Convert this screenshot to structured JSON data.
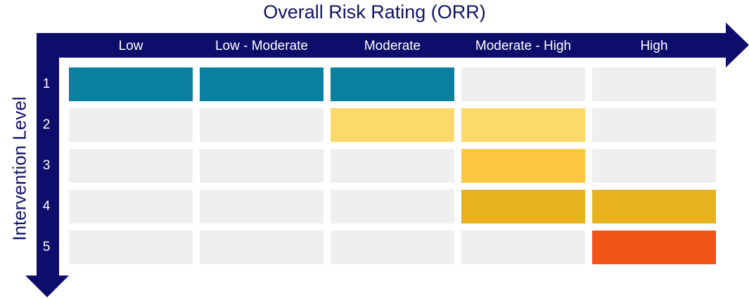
{
  "title": "Overall Risk Rating (ORR)",
  "y_title": "Intervention Level",
  "columns": [
    "Low",
    "Low - Moderate",
    "Moderate",
    "Moderate - High",
    "High"
  ],
  "rows": [
    "1",
    "2",
    "3",
    "4",
    "5"
  ],
  "colors": {
    "axis": "#0d0d6b",
    "empty": "#efefef",
    "teal": "#0a7f9f",
    "light_yellow": "#fdd96c",
    "yellow": "#fcc73f",
    "gold": "#e7b21e",
    "orange": "#f25317"
  },
  "grid": [
    [
      "teal",
      "teal",
      "teal",
      "empty",
      "empty"
    ],
    [
      "empty",
      "empty",
      "light_yellow",
      "light_yellow",
      "empty"
    ],
    [
      "empty",
      "empty",
      "empty",
      "yellow",
      "empty"
    ],
    [
      "empty",
      "empty",
      "empty",
      "gold",
      "gold"
    ],
    [
      "empty",
      "empty",
      "empty",
      "empty",
      "orange"
    ]
  ]
}
